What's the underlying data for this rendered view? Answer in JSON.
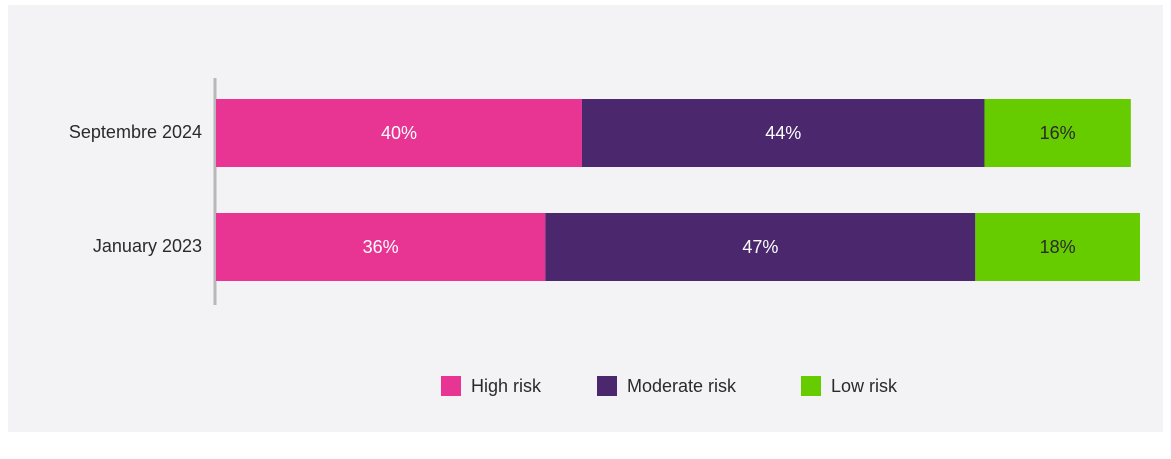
{
  "chart_data": {
    "type": "stacked_barh",
    "categories": [
      "Septembre 2024",
      "January 2023"
    ],
    "series": [
      {
        "name": "High risk",
        "color": "#e83593",
        "values": [
          40,
          36
        ],
        "value_labels": [
          "40%",
          "36%"
        ]
      },
      {
        "name": "Moderate risk",
        "color": "#4b286d",
        "values": [
          44,
          47
        ],
        "value_labels": [
          "44%",
          "47%"
        ]
      },
      {
        "name": "Low risk",
        "color": "#66cc00",
        "values": [
          16,
          18
        ],
        "value_labels": [
          "16%",
          "18%"
        ]
      }
    ],
    "xlim": [
      0,
      101
    ],
    "legend": "bottom"
  }
}
